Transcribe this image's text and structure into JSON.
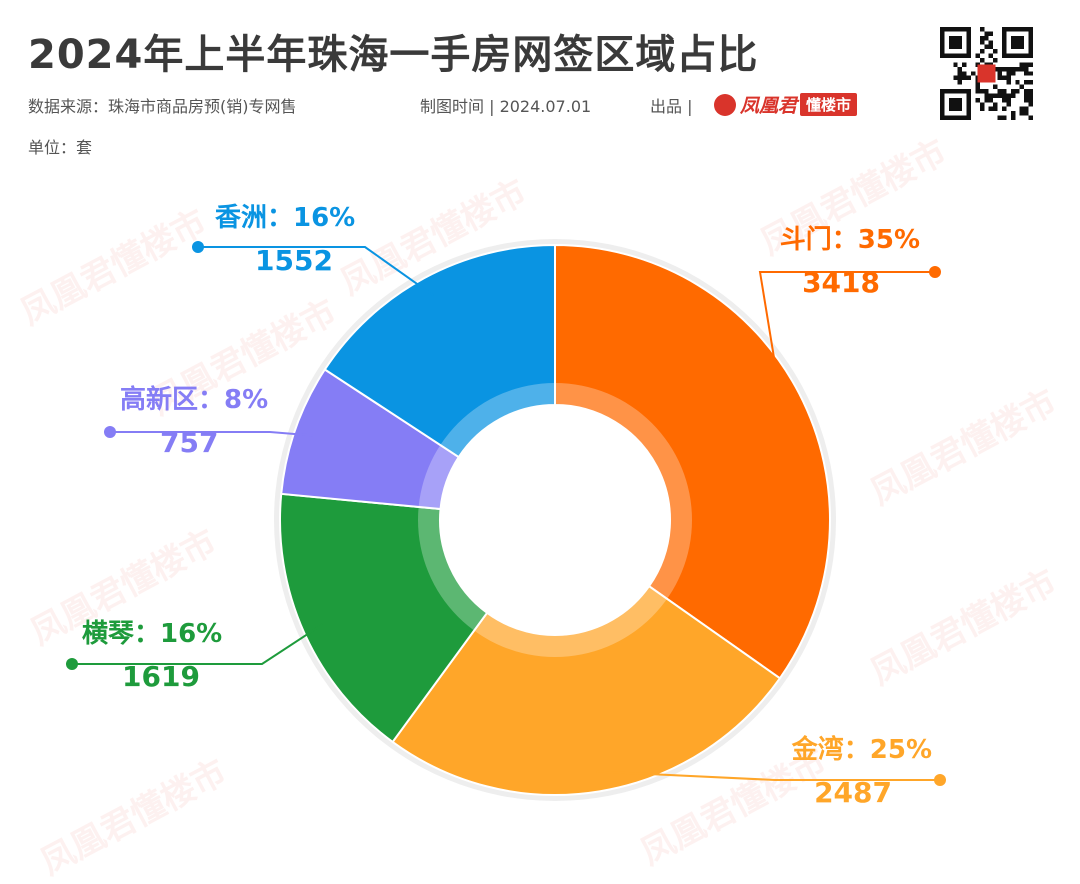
{
  "header": {
    "title": "2024年上半年珠海一手房网签区域占比",
    "source": "数据来源：珠海市商品房预(销)专网售",
    "date": "制图时间 | 2024.07.01",
    "producer": "出品 |",
    "brand_name": "凤凰君",
    "brand_tag": "懂楼市",
    "unit": "单位：套"
  },
  "watermark_text": "凤凰君懂楼市",
  "icons": {
    "qr": "qr-code",
    "brand": "fire-logo-icon"
  },
  "chart_data": {
    "type": "pie",
    "variant": "donut",
    "unit": "套",
    "slices": [
      {
        "label": "斗门",
        "value": 3418,
        "percent": "35%",
        "color": "#ff6a00"
      },
      {
        "label": "金湾",
        "value": 2487,
        "percent": "25%",
        "color": "#ffa629"
      },
      {
        "label": "横琴",
        "value": 1619,
        "percent": "16%",
        "color": "#1e9b3c"
      },
      {
        "label": "高新区",
        "value": 757,
        "percent": "8%",
        "color": "#857df5"
      },
      {
        "label": "香洲",
        "value": 1552,
        "percent": "16%",
        "color": "#0a94e2"
      }
    ]
  }
}
